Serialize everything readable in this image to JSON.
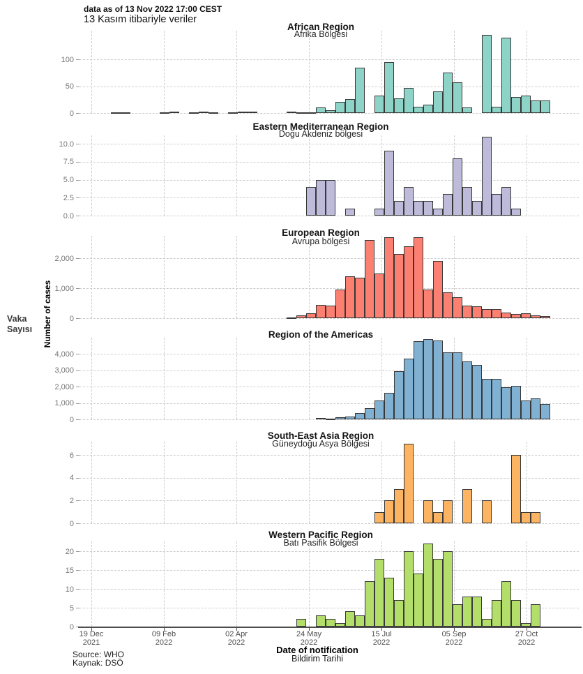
{
  "header": {
    "line1": "data as of 13 Nov 2022 17:00 CEST",
    "line2": "13 Kasım itibariyle veriler"
  },
  "left_axis": {
    "label_en": "Number of cases",
    "label_tr": "Vaka\nSayısı"
  },
  "x_axis": {
    "title_en": "Date of notification",
    "title_tr": "Bildirim Tarihi",
    "ticks": [
      {
        "date": "19 Dec",
        "year": "2021"
      },
      {
        "date": "09 Feb",
        "year": "2022"
      },
      {
        "date": "02 Apr",
        "year": "2022"
      },
      {
        "date": "24 May",
        "year": "2022"
      },
      {
        "date": "15 Jul",
        "year": "2022"
      },
      {
        "date": "05 Sep",
        "year": "2022"
      },
      {
        "date": "27 Oct",
        "year": "2022"
      }
    ]
  },
  "footer": {
    "line1": "Source: WHO",
    "line2": "Kaynak: DSÖ"
  },
  "colors": {
    "grid": "#cdcdcd",
    "tick_text": "#757575",
    "bar_outline": "#383838",
    "axis_line": "#4d4d4d"
  },
  "chart_data": {
    "type": "bar",
    "x_unit": "epidemiological week",
    "note": "weekly number of cases per WHO region; week index 0 begins 19 Dec 2021; bars read as [week_index, cases]",
    "panels": [
      {
        "title": "African Region",
        "subtitle": "Afrika Bölgesi",
        "color": "#8DD3C7",
        "yticks": [
          0,
          50,
          100
        ],
        "ytick_labels": [
          "0",
          "50",
          "100"
        ],
        "ymax": 150,
        "bars": [
          [
            2,
            1
          ],
          [
            3,
            1
          ],
          [
            7,
            1
          ],
          [
            8,
            2
          ],
          [
            10,
            1
          ],
          [
            11,
            3
          ],
          [
            12,
            1
          ],
          [
            14,
            1
          ],
          [
            15,
            2
          ],
          [
            16,
            2
          ],
          [
            20,
            3
          ],
          [
            21,
            1
          ],
          [
            22,
            1
          ],
          [
            23,
            10
          ],
          [
            24,
            5
          ],
          [
            25,
            21
          ],
          [
            26,
            26
          ],
          [
            27,
            85
          ],
          [
            29,
            32
          ],
          [
            30,
            95
          ],
          [
            31,
            27
          ],
          [
            32,
            47
          ],
          [
            33,
            12
          ],
          [
            34,
            15
          ],
          [
            35,
            40
          ],
          [
            36,
            75
          ],
          [
            37,
            57
          ],
          [
            38,
            10
          ],
          [
            40,
            145
          ],
          [
            41,
            12
          ],
          [
            42,
            140
          ],
          [
            43,
            30
          ],
          [
            44,
            33
          ],
          [
            45,
            23
          ],
          [
            46,
            23
          ]
        ]
      },
      {
        "title": "Eastern Mediterranean Region",
        "subtitle": "Doğu Akdeniz bölgesi",
        "color": "#BEBADA",
        "yticks": [
          0,
          2.5,
          5,
          7.5,
          10
        ],
        "ytick_labels": [
          "0.0",
          "2.5",
          "5.0",
          "7.5",
          "10.0"
        ],
        "ymax": 11,
        "bars": [
          [
            22,
            4
          ],
          [
            23,
            5
          ],
          [
            24,
            5
          ],
          [
            26,
            1
          ],
          [
            29,
            1
          ],
          [
            30,
            9
          ],
          [
            31,
            2
          ],
          [
            32,
            4
          ],
          [
            33,
            2
          ],
          [
            34,
            2
          ],
          [
            35,
            1
          ],
          [
            36,
            3
          ],
          [
            37,
            8
          ],
          [
            38,
            4
          ],
          [
            39,
            2
          ],
          [
            40,
            11
          ],
          [
            41,
            3
          ],
          [
            42,
            4
          ],
          [
            43,
            1
          ]
        ]
      },
      {
        "title": "European Region",
        "subtitle": "Avrupa bölgesi",
        "color": "#FB8072",
        "yticks": [
          0,
          1000,
          2000
        ],
        "ytick_labels": [
          "0",
          "1,000",
          "2,000"
        ],
        "ymax": 2750,
        "bars": [
          [
            20,
            30
          ],
          [
            21,
            100
          ],
          [
            22,
            170
          ],
          [
            23,
            450
          ],
          [
            24,
            430
          ],
          [
            25,
            950
          ],
          [
            26,
            1400
          ],
          [
            27,
            1350
          ],
          [
            28,
            2600
          ],
          [
            29,
            1500
          ],
          [
            30,
            2700
          ],
          [
            31,
            2150
          ],
          [
            32,
            2400
          ],
          [
            33,
            2700
          ],
          [
            34,
            950
          ],
          [
            35,
            1900
          ],
          [
            36,
            850
          ],
          [
            37,
            700
          ],
          [
            38,
            430
          ],
          [
            39,
            390
          ],
          [
            40,
            310
          ],
          [
            41,
            300
          ],
          [
            42,
            190
          ],
          [
            43,
            140
          ],
          [
            44,
            170
          ],
          [
            45,
            90
          ],
          [
            46,
            60
          ]
        ]
      },
      {
        "title": "Region of the Americas",
        "subtitle": "",
        "color": "#80B1D3",
        "yticks": [
          0,
          1000,
          2000,
          3000,
          4000
        ],
        "ytick_labels": [
          "0",
          "1,000",
          "2,000",
          "3,000",
          "4,000"
        ],
        "ymax": 4950,
        "bars": [
          [
            23,
            100
          ],
          [
            24,
            60
          ],
          [
            25,
            140
          ],
          [
            26,
            170
          ],
          [
            27,
            400
          ],
          [
            28,
            700
          ],
          [
            29,
            1170
          ],
          [
            30,
            1600
          ],
          [
            31,
            2950
          ],
          [
            32,
            3700
          ],
          [
            33,
            4750
          ],
          [
            34,
            4900
          ],
          [
            35,
            4800
          ],
          [
            36,
            4100
          ],
          [
            37,
            4100
          ],
          [
            38,
            3530
          ],
          [
            39,
            3310
          ],
          [
            40,
            2460
          ],
          [
            41,
            2460
          ],
          [
            42,
            1970
          ],
          [
            43,
            2030
          ],
          [
            44,
            1170
          ],
          [
            45,
            1260
          ],
          [
            46,
            930
          ]
        ]
      },
      {
        "title": "South-East Asia Region",
        "subtitle": "Güneydoğu Asya Bölgesi",
        "color": "#FDB462",
        "yticks": [
          0,
          2,
          4,
          6
        ],
        "ytick_labels": [
          "0",
          "2",
          "4",
          "6"
        ],
        "ymax": 7.2,
        "bars": [
          [
            29,
            1
          ],
          [
            30,
            2
          ],
          [
            31,
            3
          ],
          [
            32,
            7
          ],
          [
            34,
            2
          ],
          [
            35,
            1
          ],
          [
            36,
            2
          ],
          [
            38,
            3
          ],
          [
            40,
            2
          ],
          [
            43,
            6
          ],
          [
            44,
            1
          ],
          [
            45,
            1
          ]
        ]
      },
      {
        "title": "Western Pacific Region",
        "subtitle": "Batı Pasifik Bölgesi",
        "color": "#B3DE69",
        "yticks": [
          0,
          5,
          10,
          15,
          20
        ],
        "ytick_labels": [
          "0",
          "5",
          "10",
          "15",
          "20"
        ],
        "ymax": 22.5,
        "bars": [
          [
            21,
            2
          ],
          [
            23,
            3
          ],
          [
            24,
            2
          ],
          [
            25,
            1
          ],
          [
            26,
            4
          ],
          [
            27,
            3
          ],
          [
            28,
            12
          ],
          [
            29,
            18
          ],
          [
            30,
            13
          ],
          [
            31,
            7
          ],
          [
            32,
            20
          ],
          [
            33,
            14
          ],
          [
            34,
            22
          ],
          [
            35,
            18
          ],
          [
            36,
            20
          ],
          [
            37,
            6
          ],
          [
            38,
            8
          ],
          [
            39,
            8
          ],
          [
            40,
            2
          ],
          [
            41,
            7
          ],
          [
            42,
            12
          ],
          [
            43,
            7
          ],
          [
            44,
            1
          ],
          [
            45,
            6
          ]
        ]
      }
    ]
  }
}
